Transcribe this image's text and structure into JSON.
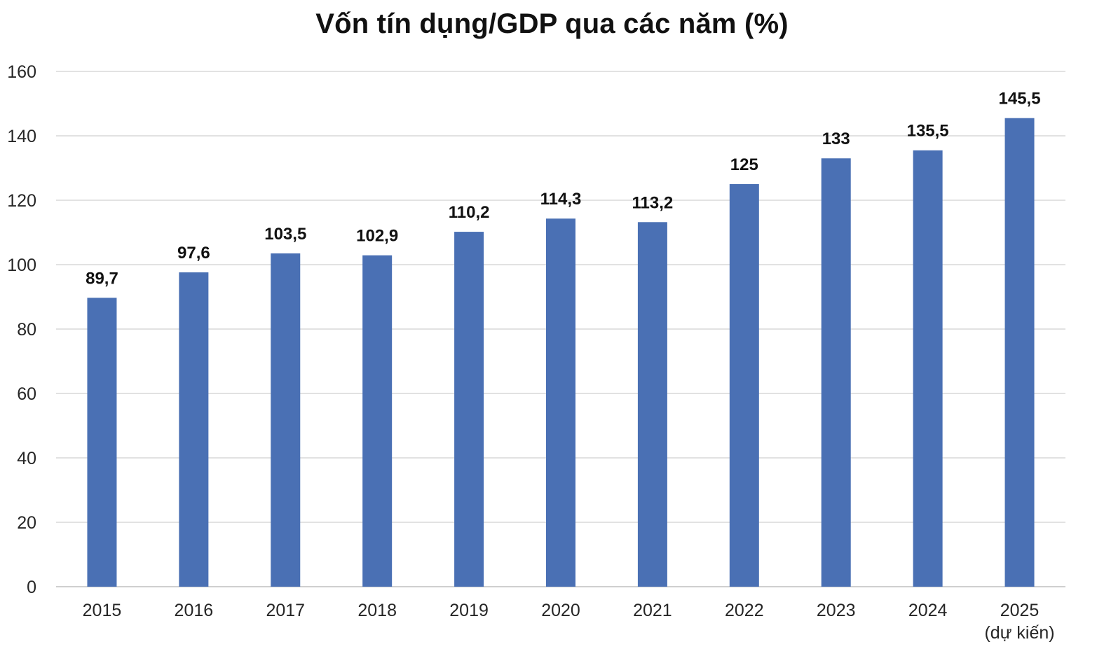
{
  "chart_data": {
    "type": "bar",
    "title": "Vốn tín dụng/GDP qua các năm (%)",
    "xlabel": "",
    "ylabel": "",
    "categories": [
      [
        "2015"
      ],
      [
        "2016"
      ],
      [
        "2017"
      ],
      [
        "2018"
      ],
      [
        "2019"
      ],
      [
        "2020"
      ],
      [
        "2021"
      ],
      [
        "2022"
      ],
      [
        "2023"
      ],
      [
        "2024"
      ],
      [
        "2025",
        "(dự kiến)"
      ]
    ],
    "values": [
      89.7,
      97.6,
      103.5,
      102.9,
      110.2,
      114.3,
      113.2,
      125,
      133,
      135.5,
      145.5
    ],
    "data_labels": [
      "89,7",
      "97,6",
      "103,5",
      "102,9",
      "110,2",
      "114,3",
      "113,2",
      "125",
      "133",
      "135,5",
      "145,5"
    ],
    "ylim": [
      0,
      160
    ],
    "yticks": [
      0,
      20,
      40,
      60,
      80,
      100,
      120,
      140,
      160
    ],
    "grid": true,
    "legend": "none",
    "colors": {
      "bar": "#4a70b4",
      "grid": "#d9d9d9",
      "text": "#262626"
    }
  }
}
